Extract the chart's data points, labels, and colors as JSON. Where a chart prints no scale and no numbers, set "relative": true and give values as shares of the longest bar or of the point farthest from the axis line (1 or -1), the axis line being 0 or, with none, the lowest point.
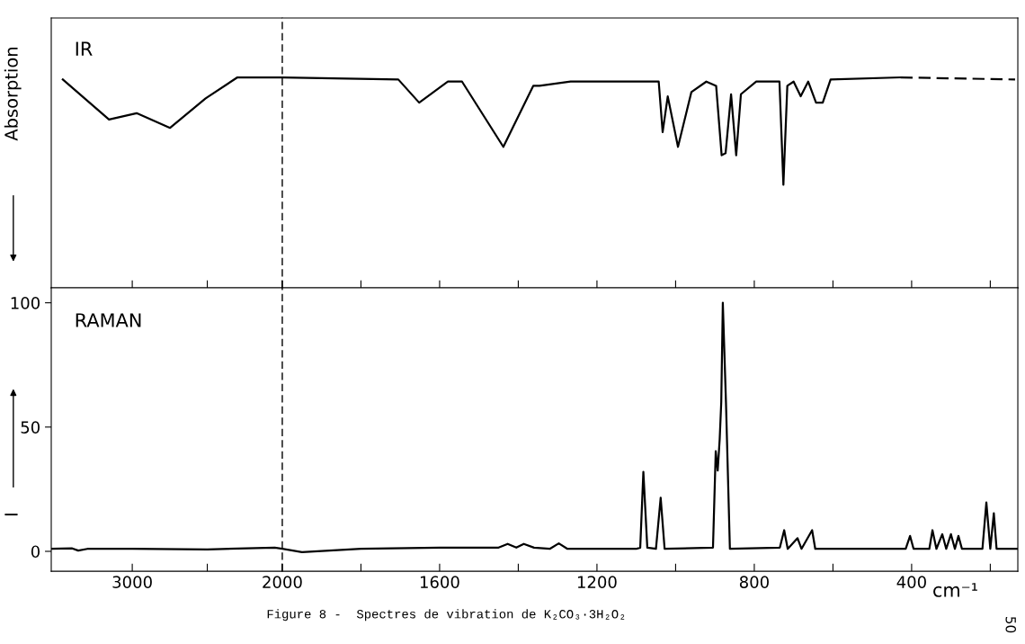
{
  "chart_data": [
    {
      "type": "line",
      "relative": true,
      "xlim": [
        3540,
        2000
      ],
      "xticks": [
        3000,
        {
          "value": 2500,
          "label": null
        },
        2000
      ],
      "tick_labels": false,
      "ylabel": "Absorption",
      "annotations": [
        "IR"
      ],
      "series": [
        {
          "color": "#000000",
          "line_style": "solid",
          "x": [
            3463,
            3155,
            2971,
            2748,
            2511,
            2299,
            2000
          ],
          "values": [
            0.99,
            0.8,
            0.83,
            0.76,
            0.9,
            1.0,
            1.0
          ]
        }
      ]
    },
    {
      "type": "line",
      "relative": true,
      "xlim": [
        2000,
        130
      ],
      "xticks": [
        {
          "value": 2000,
          "label": null
        },
        {
          "value": 1800,
          "label": null
        },
        1600,
        {
          "value": 1400,
          "label": null
        },
        1200,
        {
          "value": 1000,
          "label": null
        },
        800,
        {
          "value": 600,
          "label": null
        },
        400,
        {
          "value": 200,
          "label": null
        }
      ],
      "tick_labels": false,
      "ref_lines": [
        {
          "axis": "x",
          "value": 2000,
          "label": null,
          "color": "#000000",
          "line_style": "dashed"
        }
      ],
      "series": [
        {
          "color": "#000000",
          "line_style": "solid",
          "x": [
            2000,
            1705,
            1652,
            1579,
            1543,
            1438,
            1362,
            1346,
            1267,
            1043,
            1033,
            1020,
            994,
            960,
            922,
            897,
            883,
            873,
            859,
            846,
            834,
            795,
            736,
            726,
            716,
            700,
            682,
            663,
            643,
            626,
            606,
            428
          ],
          "values": [
            1.0,
            0.99,
            0.88,
            0.98,
            0.98,
            0.67,
            0.96,
            0.96,
            0.98,
            0.98,
            0.74,
            0.91,
            0.67,
            0.93,
            0.98,
            0.96,
            0.63,
            0.64,
            0.92,
            0.63,
            0.92,
            0.98,
            0.98,
            0.49,
            0.96,
            0.98,
            0.91,
            0.98,
            0.88,
            0.88,
            0.99,
            1.0
          ]
        },
        {
          "color": "#000000",
          "line_style": "dashed",
          "x": [
            428,
            137
          ],
          "values": [
            1.0,
            0.99
          ]
        }
      ]
    },
    {
      "type": "line",
      "xlim": [
        3540,
        2000
      ],
      "xticks": [
        3000,
        {
          "value": 2500,
          "label": null
        },
        2000
      ],
      "ylim": [
        -8,
        106
      ],
      "yticks": [
        0,
        50,
        100
      ],
      "ylabel": "I",
      "annotations": [
        "RAMAN"
      ],
      "series": [
        {
          "color": "#000000",
          "line_style": "solid",
          "x": [
            3540,
            3400,
            3360,
            3300,
            3000,
            2500,
            2050,
            2000
          ],
          "values": [
            1,
            1.2,
            0.3,
            1,
            1,
            0.8,
            1.5,
            1
          ]
        }
      ]
    },
    {
      "type": "line",
      "xlim": [
        2000,
        130
      ],
      "xticks": [
        {
          "value": 2000,
          "label": null
        },
        {
          "value": 1800,
          "label": null
        },
        1600,
        {
          "value": 1400,
          "label": null
        },
        1200,
        {
          "value": 1000,
          "label": null
        },
        800,
        {
          "value": 600,
          "label": null
        },
        400,
        {
          "value": 200,
          "label": null
        }
      ],
      "ylim": [
        -8,
        106
      ],
      "tick_labels": "x",
      "xlabel": "cm⁻¹",
      "ref_lines": [
        {
          "axis": "x",
          "value": 2000,
          "label": null,
          "color": "#000000",
          "line_style": "dashed"
        }
      ],
      "annotations": [
        "Figure 8 -  Spectres de vibration de K₂CO₃·3H₂O₂",
        "50"
      ],
      "series": [
        {
          "color": "#000000",
          "line_style": "solid",
          "x": [
            2000,
            1950,
            1800,
            1600,
            1450,
            1427,
            1405,
            1386,
            1360,
            1320,
            1297,
            1275,
            1100,
            1090,
            1082,
            1072,
            1050,
            1038,
            1028,
            905,
            898,
            893,
            888,
            884,
            880,
            872,
            862,
            735,
            724,
            715,
            690,
            680,
            653,
            645,
            415,
            404,
            395,
            355,
            347,
            337,
            322,
            312,
            300,
            290,
            281,
            272,
            220,
            210,
            200,
            191,
            184,
            130
          ],
          "values": [
            1,
            -0.3,
            1,
            1.5,
            1.5,
            3,
            1.5,
            3,
            1.5,
            1,
            3.2,
            1,
            1,
            1.5,
            32,
            1.5,
            1,
            21.6,
            1,
            1.5,
            40.3,
            32.5,
            45,
            60,
            100,
            60,
            1,
            1.5,
            8.5,
            1,
            5.3,
            1,
            8.5,
            1,
            1,
            6.2,
            1,
            1,
            8.5,
            1,
            6.9,
            1,
            6.9,
            1,
            6.2,
            1,
            1,
            19.7,
            1,
            15.3,
            1,
            1
          ]
        }
      ]
    }
  ]
}
